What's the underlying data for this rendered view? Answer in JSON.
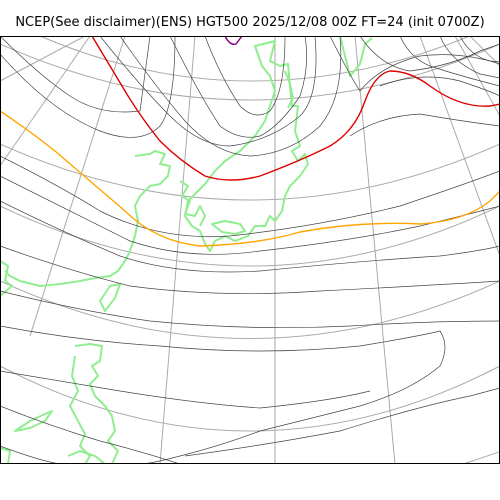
{
  "title": "NCEP(See disclaimer)(ENS) HGT500 2025/12/08 00Z FT=24 (init 0700Z)",
  "colors": {
    "graticule": "#aaaaaa",
    "contour": "#444444",
    "coast": "#90ee90",
    "highlight_red": "#e00000",
    "highlight_orange": "#ffa500",
    "highlight_purple": "#800080",
    "frame": "#000000"
  }
}
